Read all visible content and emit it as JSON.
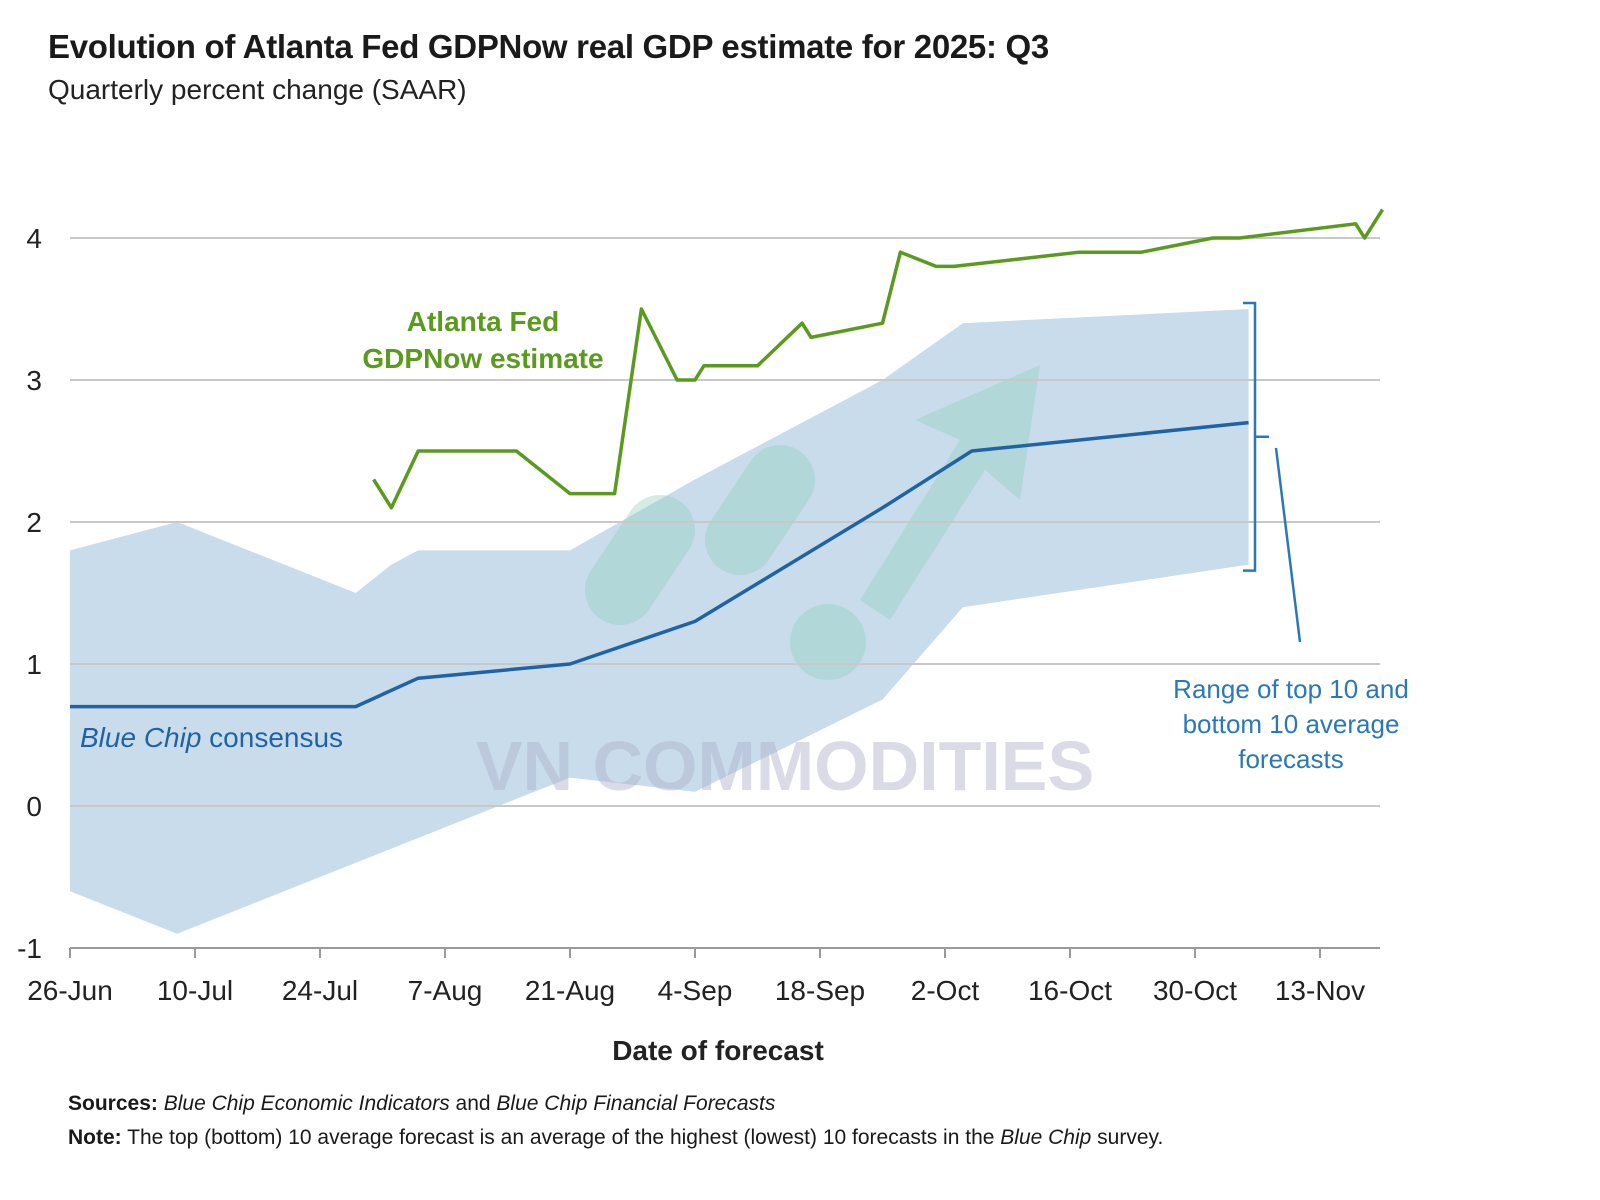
{
  "chart_data": {
    "type": "line",
    "title": "Evolution of Atlanta Fed GDPNow real GDP estimate for 2025: Q3",
    "subtitle": "Quarterly percent change (SAAR)",
    "xlabel": "Date of forecast",
    "ylabel": "",
    "ylim": [
      -1,
      4
    ],
    "yticks": [
      "-1",
      "0",
      "1",
      "2",
      "3",
      "4"
    ],
    "xticks": [
      "26-Jun",
      "10-Jul",
      "24-Jul",
      "7-Aug",
      "21-Aug",
      "4-Sep",
      "18-Sep",
      "2-Oct",
      "16-Oct",
      "30-Oct",
      "13-Nov"
    ],
    "grid": true,
    "colors": {
      "gdpnow": "#5a9a1e",
      "consensus": "#1f63a4",
      "band": "#c9dcec",
      "note": "#2b78b8",
      "grid": "#c8c8c8"
    },
    "series": [
      {
        "name": "Atlanta Fed GDPNow estimate",
        "points": [
          [
            "2025-07-30",
            2.3
          ],
          [
            "2025-08-01",
            2.1
          ],
          [
            "2025-08-04",
            2.5
          ],
          [
            "2025-08-15",
            2.5
          ],
          [
            "2025-08-21",
            2.2
          ],
          [
            "2025-08-26",
            2.2
          ],
          [
            "2025-08-29",
            3.5
          ],
          [
            "2025-09-02",
            3.0
          ],
          [
            "2025-09-04",
            3.0
          ],
          [
            "2025-09-05",
            3.1
          ],
          [
            "2025-09-11",
            3.1
          ],
          [
            "2025-09-16",
            3.4
          ],
          [
            "2025-09-17",
            3.3
          ],
          [
            "2025-09-25",
            3.4
          ],
          [
            "2025-09-27",
            3.9
          ],
          [
            "2025-10-01",
            3.8
          ],
          [
            "2025-10-03",
            3.8
          ],
          [
            "2025-10-17",
            3.9
          ],
          [
            "2025-10-24",
            3.9
          ],
          [
            "2025-11-01",
            4.0
          ],
          [
            "2025-11-04",
            4.0
          ],
          [
            "2025-11-17",
            4.1
          ],
          [
            "2025-11-18",
            4.0
          ],
          [
            "2025-11-20",
            4.2
          ]
        ]
      },
      {
        "name": "Blue Chip consensus",
        "points": [
          [
            "2025-06-26",
            0.7
          ],
          [
            "2025-07-28",
            0.7
          ],
          [
            "2025-08-04",
            0.9
          ],
          [
            "2025-08-21",
            1.0
          ],
          [
            "2025-09-04",
            1.3
          ],
          [
            "2025-09-25",
            2.1
          ],
          [
            "2025-10-05",
            2.5
          ],
          [
            "2025-11-05",
            2.7
          ]
        ]
      }
    ],
    "range_band": {
      "name": "Range of top 10 and bottom 10 average forecasts",
      "upper": [
        [
          "2025-06-26",
          1.8
        ],
        [
          "2025-07-08",
          2.0
        ],
        [
          "2025-07-28",
          1.5
        ],
        [
          "2025-08-01",
          1.7
        ],
        [
          "2025-08-04",
          1.8
        ],
        [
          "2025-08-21",
          1.8
        ],
        [
          "2025-08-28",
          2.05
        ],
        [
          "2025-09-04",
          2.3
        ],
        [
          "2025-09-25",
          3.0
        ],
        [
          "2025-10-04",
          3.4
        ],
        [
          "2025-11-05",
          3.5
        ]
      ],
      "lower": [
        [
          "2025-06-26",
          -0.6
        ],
        [
          "2025-07-08",
          -0.9
        ],
        [
          "2025-08-21",
          0.2
        ],
        [
          "2025-08-28",
          0.15
        ],
        [
          "2025-09-04",
          0.1
        ],
        [
          "2025-09-25",
          0.75
        ],
        [
          "2025-10-04",
          1.4
        ],
        [
          "2025-11-05",
          1.7
        ]
      ]
    },
    "annotations": {
      "gdpnow_label": [
        "Atlanta Fed",
        "GDPNow estimate"
      ],
      "consensus_label_italic": "Blue Chip",
      "consensus_label_rest": " consensus",
      "range_label": [
        "Range of top 10 and",
        "bottom 10 average",
        "forecasts"
      ]
    },
    "watermark": "VN COMMODITIES"
  },
  "footnotes": {
    "sources_label": "Sources:",
    "sources_i1": "Blue Chip Economic Indicators",
    "sources_and": " and ",
    "sources_i2": "Blue Chip Financial Forecasts",
    "note_label": "Note:",
    "note_text_1": " The top (bottom) 10 average forecast is an average of the highest (lowest) 10 forecasts in the ",
    "note_i": "Blue Chip",
    "note_text_2": " survey."
  }
}
